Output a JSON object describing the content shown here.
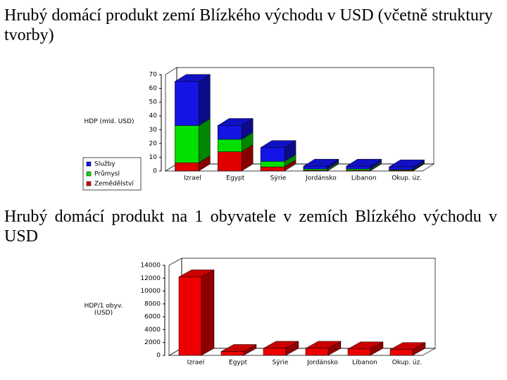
{
  "chart_data": [
    {
      "type": "bar",
      "stacked": true,
      "title": "Hrubý domácí produkt zemí Blízkého východu v USD (včetně struktury tvorby)",
      "y_label": "HDP (mld. USD)",
      "categories": [
        "Izrael",
        "Egypt",
        "Sýrie",
        "Jordánsko",
        "Libanon",
        "Okup. úz."
      ],
      "series": [
        {
          "name": "Zemědělství",
          "color": "#e00000",
          "values": [
            6,
            14,
            3,
            0.5,
            0.5,
            0.5
          ]
        },
        {
          "name": "Průmysl",
          "color": "#00e000",
          "values": [
            27,
            9,
            4,
            1,
            1,
            0.5
          ]
        },
        {
          "name": "Služby",
          "color": "#1414e6",
          "values": [
            32,
            10,
            10,
            2,
            2,
            2
          ]
        }
      ],
      "ylim": [
        0,
        70
      ],
      "yticks": [
        0,
        10,
        20,
        30,
        40,
        50,
        60,
        70
      ]
    },
    {
      "type": "bar",
      "title": "Hrubý domácí produkt na 1 obyvatele v zemích Blízkého východu v USD",
      "y_label": "HDP/1 obyv. (USD)",
      "categories": [
        "Izrael",
        "Egypt",
        "Sýrie",
        "Jordánsko",
        "Libanon",
        "Okup. úz."
      ],
      "values": [
        12200,
        600,
        1100,
        1100,
        1000,
        900
      ],
      "color": "#ee0000",
      "ylim": [
        0,
        14000
      ],
      "yticks": [
        0,
        2000,
        4000,
        6000,
        8000,
        10000,
        12000,
        14000
      ]
    }
  ]
}
